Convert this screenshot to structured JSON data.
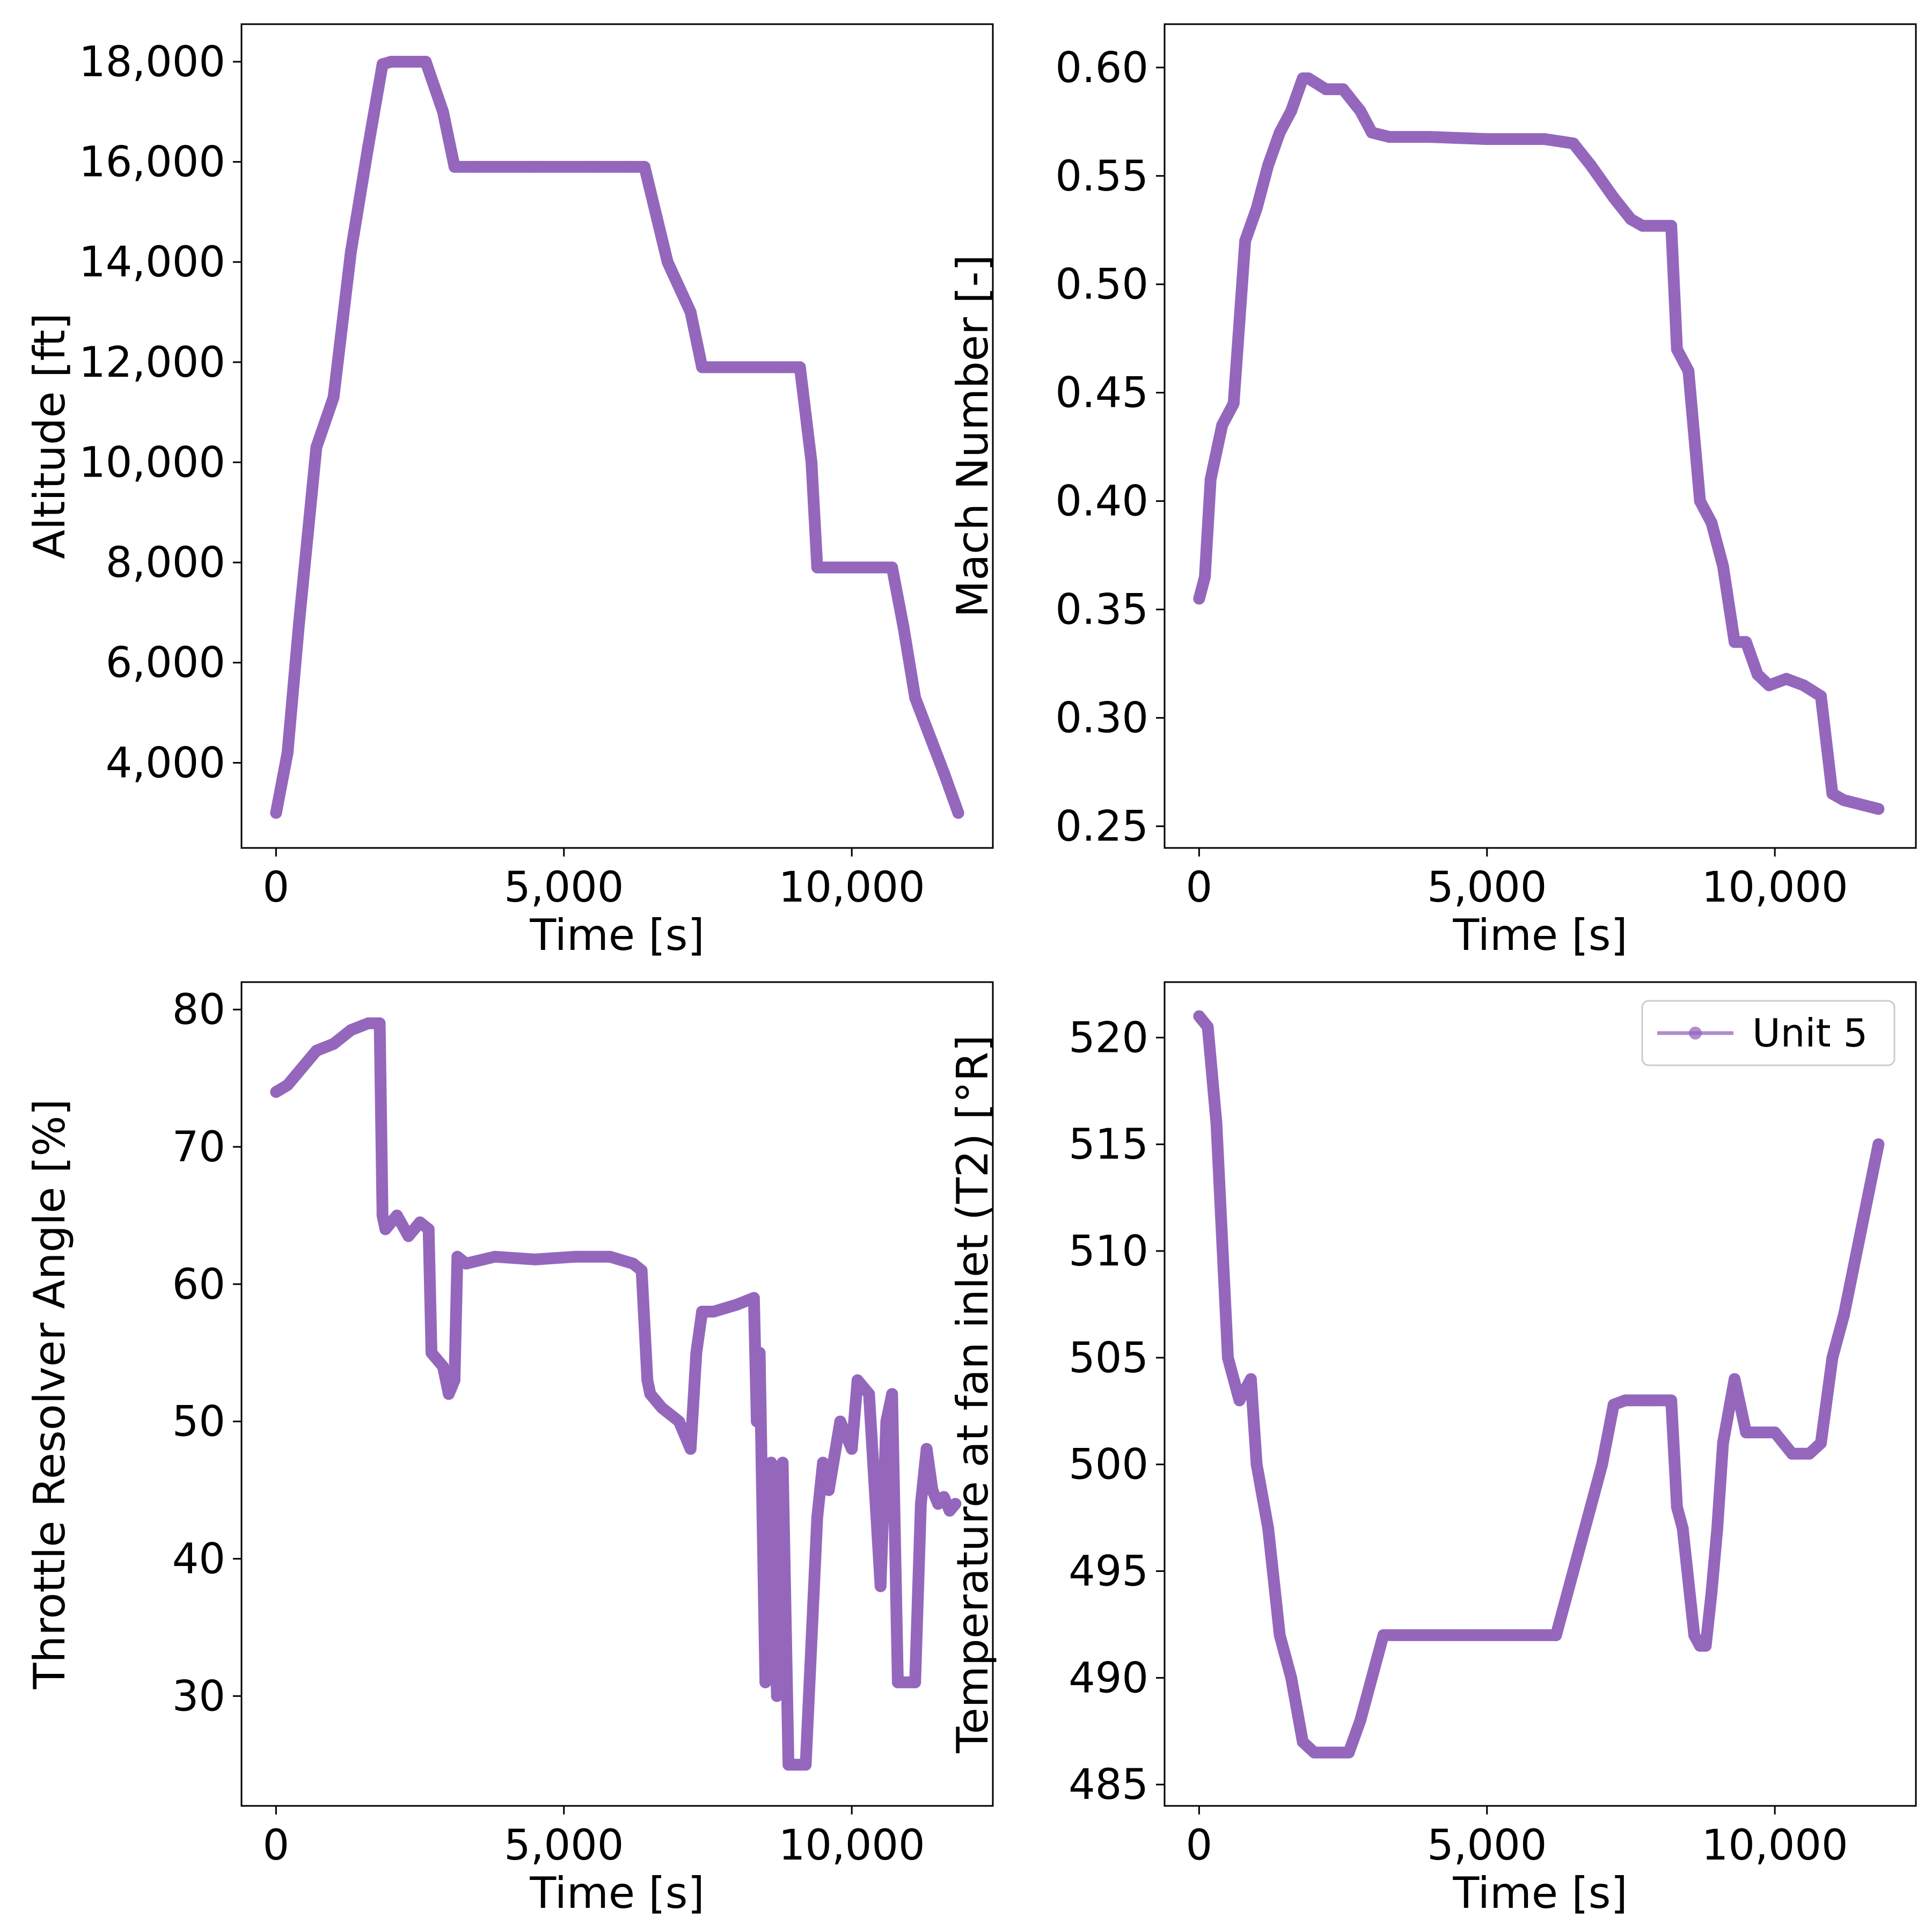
{
  "figure": {
    "background": "#ffffff",
    "series_color": "#9467bd"
  },
  "chart_data": [
    {
      "type": "line",
      "panel": "top-left",
      "title": "",
      "xlabel": "Time [s]",
      "ylabel": "Altitude [ft]",
      "xlim": [
        -600,
        12450
      ],
      "ylim": [
        2300,
        18750
      ],
      "xticks": [
        0,
        5000,
        10000
      ],
      "xtick_labels": [
        "0",
        "5,000",
        "10,000"
      ],
      "yticks": [
        4000,
        6000,
        8000,
        10000,
        12000,
        14000,
        16000,
        18000
      ],
      "ytick_labels": [
        "4,000",
        "6,000",
        "8,000",
        "10,000",
        "12,000",
        "14,000",
        "16,000",
        "18,000"
      ],
      "grid": false,
      "series": [
        {
          "name": "Unit 5",
          "color": "#9467bd",
          "x": [
            0,
            200,
            400,
            700,
            1000,
            1300,
            1600,
            1850,
            2000,
            2300,
            2600,
            2900,
            3100,
            3500,
            4500,
            5500,
            6100,
            6400,
            6800,
            7200,
            7400,
            8000,
            8800,
            9100,
            9300,
            9400,
            9800,
            10300,
            10700,
            10900,
            11100,
            11300,
            11600,
            11850
          ],
          "y": [
            3000,
            4200,
            6800,
            10300,
            11300,
            14200,
            16300,
            17950,
            18000,
            18000,
            18000,
            17000,
            15900,
            15900,
            15900,
            15900,
            15900,
            15900,
            14000,
            13000,
            11900,
            11900,
            11900,
            11900,
            10000,
            7900,
            7900,
            7900,
            7900,
            6700,
            5300,
            4700,
            3800,
            3000
          ]
        }
      ]
    },
    {
      "type": "line",
      "panel": "top-right",
      "title": "",
      "xlabel": "Time [s]",
      "ylabel": "Mach Number [-]",
      "xlim": [
        -600,
        12450
      ],
      "ylim": [
        0.24,
        0.62
      ],
      "xticks": [
        0,
        5000,
        10000
      ],
      "xtick_labels": [
        "0",
        "5,000",
        "10,000"
      ],
      "yticks": [
        0.25,
        0.3,
        0.35,
        0.4,
        0.45,
        0.5,
        0.55,
        0.6
      ],
      "ytick_labels": [
        "0.25",
        "0.30",
        "0.35",
        "0.40",
        "0.45",
        "0.50",
        "0.55",
        "0.60"
      ],
      "grid": false,
      "series": [
        {
          "name": "Unit 5",
          "color": "#9467bd",
          "x": [
            0,
            100,
            200,
            400,
            600,
            800,
            1000,
            1200,
            1400,
            1600,
            1800,
            1900,
            2200,
            2500,
            2800,
            3000,
            3300,
            4000,
            5000,
            6000,
            6500,
            6800,
            7200,
            7500,
            7700,
            8000,
            8200,
            8300,
            8500,
            8700,
            8900,
            9100,
            9300,
            9500,
            9700,
            9900,
            10200,
            10500,
            10800,
            11000,
            11200,
            11500,
            11800
          ],
          "y": [
            0.355,
            0.365,
            0.41,
            0.435,
            0.445,
            0.52,
            0.535,
            0.555,
            0.57,
            0.58,
            0.595,
            0.595,
            0.59,
            0.59,
            0.58,
            0.57,
            0.568,
            0.568,
            0.567,
            0.567,
            0.565,
            0.555,
            0.54,
            0.53,
            0.527,
            0.527,
            0.527,
            0.47,
            0.46,
            0.4,
            0.39,
            0.37,
            0.335,
            0.335,
            0.32,
            0.315,
            0.318,
            0.315,
            0.31,
            0.265,
            0.262,
            0.26,
            0.258
          ]
        }
      ]
    },
    {
      "type": "line",
      "panel": "bottom-left",
      "title": "",
      "xlabel": "Time [s]",
      "ylabel": "Throttle Resolver Angle [%]",
      "xlim": [
        -600,
        12450
      ],
      "ylim": [
        22,
        82
      ],
      "xticks": [
        0,
        5000,
        10000
      ],
      "xtick_labels": [
        "0",
        "5,000",
        "10,000"
      ],
      "yticks": [
        30,
        40,
        50,
        60,
        70,
        80
      ],
      "ytick_labels": [
        "30",
        "40",
        "50",
        "60",
        "70",
        "80"
      ],
      "grid": false,
      "series": [
        {
          "name": "Unit 5",
          "color": "#9467bd",
          "x": [
            0,
            200,
            400,
            700,
            1000,
            1300,
            1600,
            1800,
            1850,
            1900,
            2100,
            2300,
            2500,
            2650,
            2700,
            2900,
            3000,
            3100,
            3150,
            3300,
            3800,
            4500,
            5200,
            5800,
            6200,
            6350,
            6450,
            6500,
            6700,
            7000,
            7200,
            7300,
            7400,
            7600,
            8000,
            8300,
            8350,
            8400,
            8500,
            8600,
            8700,
            8800,
            8900,
            9000,
            9100,
            9200,
            9400,
            9500,
            9600,
            9800,
            10000,
            10100,
            10300,
            10500,
            10600,
            10700,
            10800,
            11000,
            11100,
            11200,
            11300,
            11400,
            11500,
            11600,
            11700,
            11800
          ],
          "y": [
            74,
            74.5,
            75.5,
            77,
            77.5,
            78.5,
            79,
            79,
            65,
            64,
            65,
            63.5,
            64.5,
            64,
            55,
            54,
            52,
            53,
            62,
            61.5,
            62,
            61.8,
            62,
            62,
            61.5,
            61,
            53,
            52,
            51,
            50,
            48,
            55,
            58,
            58,
            58.5,
            59,
            50,
            55,
            31,
            47,
            30,
            47,
            25,
            25,
            25,
            25,
            43,
            47,
            45,
            50,
            48,
            53,
            52,
            38,
            50,
            52,
            31,
            31,
            31,
            44,
            48,
            45,
            44,
            44.5,
            43.5,
            44
          ]
        }
      ]
    },
    {
      "type": "line",
      "panel": "bottom-right",
      "title": "",
      "xlabel": "Time [s]",
      "ylabel": "Temperature at fan inlet (T2) [°R]",
      "xlim": [
        -600,
        12450
      ],
      "ylim": [
        484,
        522.6
      ],
      "xticks": [
        0,
        5000,
        10000
      ],
      "xtick_labels": [
        "0",
        "5,000",
        "10,000"
      ],
      "yticks": [
        485,
        490,
        495,
        500,
        505,
        510,
        515,
        520
      ],
      "ytick_labels": [
        "485",
        "490",
        "495",
        "500",
        "505",
        "510",
        "515",
        "520"
      ],
      "grid": false,
      "legend": {
        "position": "top-right",
        "entries": [
          "Unit 5"
        ]
      },
      "series": [
        {
          "name": "Unit 5",
          "color": "#9467bd",
          "x": [
            0,
            150,
            300,
            500,
            700,
            900,
            1000,
            1200,
            1400,
            1600,
            1800,
            2000,
            2300,
            2600,
            2800,
            3000,
            3200,
            3500,
            4500,
            5500,
            6200,
            6500,
            6800,
            7000,
            7200,
            7400,
            7800,
            8200,
            8300,
            8400,
            8600,
            8700,
            8800,
            8900,
            9000,
            9100,
            9300,
            9500,
            9700,
            10000,
            10300,
            10600,
            10800,
            11000,
            11200,
            11500,
            11800
          ],
          "y": [
            521,
            520.5,
            516,
            505,
            503,
            504,
            500,
            497,
            492,
            490,
            487,
            486.5,
            486.5,
            486.5,
            488,
            490,
            492,
            492,
            492,
            492,
            492,
            495,
            498,
            500,
            502.8,
            503,
            503,
            503,
            498,
            497,
            492,
            491.5,
            491.5,
            494,
            497,
            501,
            504,
            501.5,
            501.5,
            501.5,
            500.5,
            500.5,
            501,
            505,
            507,
            511,
            515
          ]
        }
      ]
    }
  ]
}
